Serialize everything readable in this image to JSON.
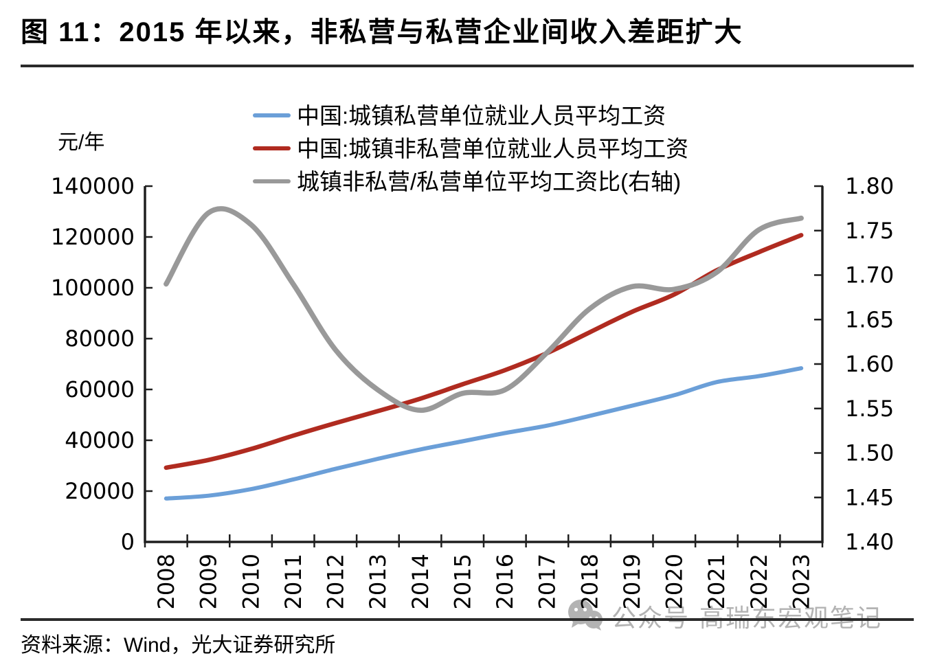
{
  "page": {
    "title": "图 11：2015 年以来，非私营与私营企业间收入差距扩大",
    "source": "资料来源：Wind，光大证券研究所",
    "watermark": "公众号·高瑞东宏观笔记"
  },
  "style": {
    "axis_color": "#1f1f1f",
    "text_color": "#000000",
    "rule_color": "#2b2b2b",
    "watermark_color": "#ababab"
  },
  "chart_data": {
    "type": "line",
    "title": "图 11：2015 年以来，非私营与私营企业间收入差距扩大",
    "smoothed": true,
    "grid": false,
    "legend_position": "top-center",
    "categories": [
      "2008",
      "2009",
      "2010",
      "2011",
      "2012",
      "2013",
      "2014",
      "2015",
      "2016",
      "2017",
      "2018",
      "2019",
      "2020",
      "2021",
      "2022",
      "2023"
    ],
    "series": [
      {
        "name": "中国:城镇私营单位就业人员平均工资",
        "axis": "left",
        "color": "#6b9fd8",
        "stroke_width": 6,
        "values": [
          17071,
          18199,
          20759,
          24556,
          28752,
          32706,
          36390,
          39589,
          42833,
          45761,
          49575,
          53604,
          57727,
          62884,
          65237,
          68340
        ]
      },
      {
        "name": "中国:城镇非私营单位就业人员平均工资",
        "axis": "left",
        "color": "#b02b20",
        "stroke_width": 6.5,
        "values": [
          29229,
          32244,
          36539,
          41799,
          46769,
          51483,
          56360,
          62029,
          67569,
          74318,
          82461,
          90501,
          97379,
          106837,
          114029,
          120698
        ]
      },
      {
        "name": "城镇非私营/私营单位平均工资比(右轴)",
        "axis": "right",
        "color": "#999999",
        "stroke_width": 7.5,
        "values": [
          1.69,
          1.77,
          1.757,
          1.69,
          1.616,
          1.571,
          1.548,
          1.567,
          1.571,
          1.613,
          1.662,
          1.687,
          1.684,
          1.703,
          1.751,
          1.764
        ]
      }
    ],
    "left_axis": {
      "unit_label": "元/年",
      "min": 0,
      "max": 140000,
      "tick_labels": [
        "140000",
        "120000",
        "100000",
        "80000",
        "60000",
        "40000",
        "20000",
        "0"
      ]
    },
    "right_axis": {
      "min": 1.4,
      "max": 1.8,
      "tick_labels": [
        "1.80",
        "1.75",
        "1.70",
        "1.65",
        "1.60",
        "1.55",
        "1.50",
        "1.45",
        "1.40"
      ]
    }
  }
}
